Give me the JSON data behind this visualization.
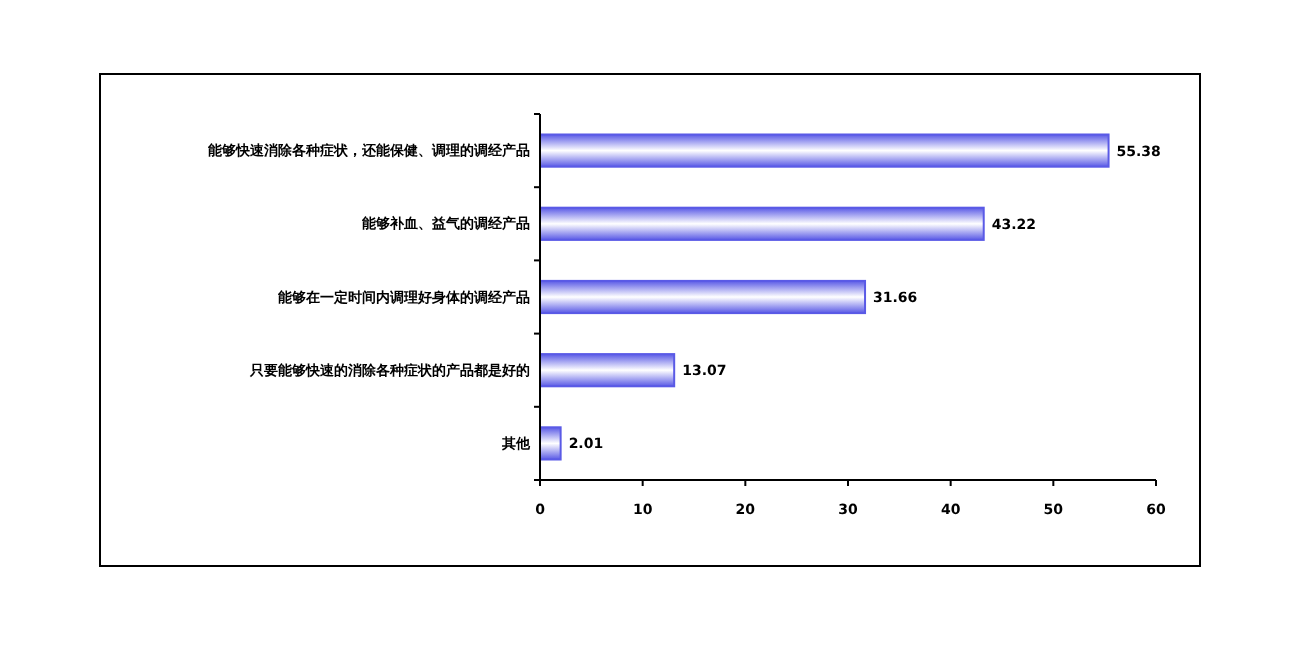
{
  "chart_data": {
    "type": "bar",
    "orientation": "horizontal",
    "categories": [
      "能够快速消除各种症状，还能保健、调理的调经产品",
      "能够补血、益气的调经产品",
      "能够在一定时间内调理好身体的调经产品",
      "只要能够快速的消除各种症状的产品都是好的",
      "其他"
    ],
    "values": [
      55.38,
      43.22,
      31.66,
      13.07,
      2.01
    ],
    "color": "#5a5ae6",
    "xlim": [
      0,
      60
    ],
    "xticks": [
      0,
      10,
      20,
      30,
      40,
      50,
      60
    ],
    "data_labels": true,
    "grid": false
  }
}
